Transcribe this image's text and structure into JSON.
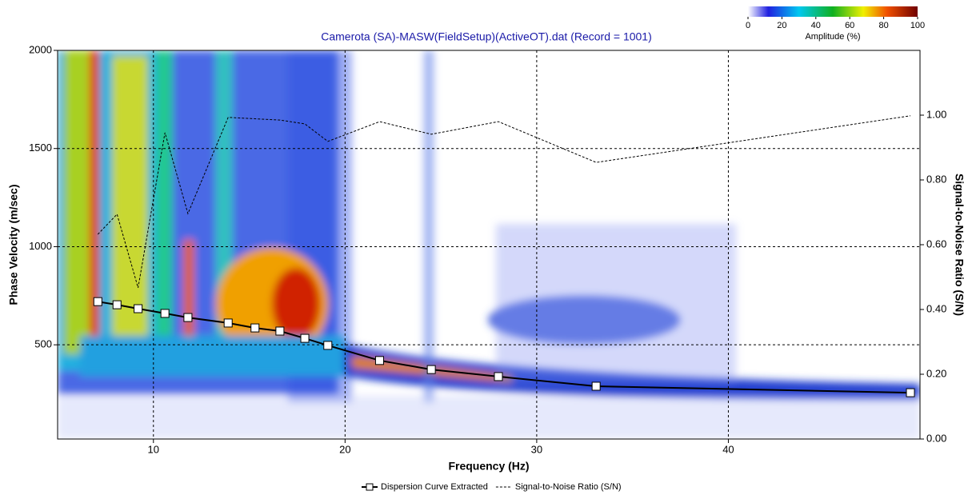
{
  "chart_data": {
    "type": "line",
    "title": "Camerota (SA)-MASW(FieldSetup)(ActiveOT).dat (Record = 1001)",
    "x_label": "Frequency (Hz)",
    "y_label": "Phase Velocity (m/sec)",
    "y2_label": "Signal-to-Noise Ratio (S/N)",
    "xlim": [
      5,
      50
    ],
    "xticks": [
      10,
      20,
      30,
      40
    ],
    "ylim": [
      20,
      2000
    ],
    "yticks": [
      500,
      1000,
      1500,
      2000
    ],
    "y2lim": [
      0,
      1.2
    ],
    "y2ticks": [
      {
        "value": 0,
        "label": "0.00"
      },
      {
        "value": 0.2,
        "label": "0.20"
      },
      {
        "value": 0.4,
        "label": "0.40"
      },
      {
        "value": 0.6,
        "label": "0.60"
      },
      {
        "value": 0.8,
        "label": "0.80"
      },
      {
        "value": 1.0,
        "label": "1.00"
      }
    ],
    "grid": true,
    "series": [
      {
        "name": "Dispersion Curve Extracted",
        "color": "#000000",
        "marker": "square",
        "x": [
          7.1,
          8.1,
          9.2,
          10.6,
          11.8,
          13.9,
          15.3,
          16.6,
          17.9,
          19.1,
          21.8,
          24.5,
          28.0,
          33.1,
          49.5
        ],
        "values": [
          720,
          704,
          684,
          660,
          639,
          611,
          586,
          570,
          533,
          497,
          420,
          374,
          338,
          289,
          256
        ]
      },
      {
        "name": "Signal-to-Noise Ratio (S/N)",
        "color": "#000000",
        "axis": "y2",
        "dash": true,
        "x": [
          7.1,
          8.1,
          9.2,
          10.6,
          11.8,
          13.9,
          16.6,
          17.9,
          19.1,
          21.8,
          24.5,
          28.0,
          33.1,
          49.5
        ],
        "values": [
          0.632,
          0.694,
          0.467,
          0.946,
          0.696,
          0.993,
          0.985,
          0.973,
          0.919,
          0.98,
          0.941,
          0.98,
          0.854,
          0.998
        ]
      }
    ],
    "colorbar": {
      "label": "Amplitude (%)",
      "lim": [
        0,
        100
      ],
      "ticks": [
        0,
        20,
        40,
        60,
        80,
        100
      ]
    }
  }
}
